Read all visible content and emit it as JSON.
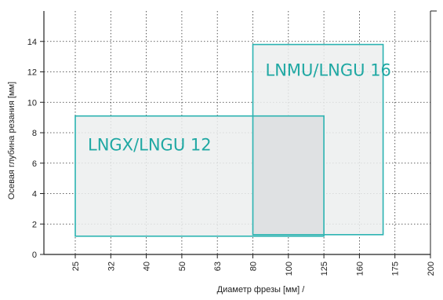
{
  "chart_data": {
    "type": "area",
    "title": "",
    "xlabel": "Диаметр фрезы [мм] /",
    "ylabel": "Осевая глубина резания [мм]",
    "x_scale": "categorical",
    "x_ticks": [
      "25",
      "32",
      "40",
      "50",
      "63",
      "80",
      "100",
      "125",
      "160",
      "175",
      "200"
    ],
    "y_ticks": [
      "0",
      "2",
      "4",
      "6",
      "8",
      "10",
      "12",
      "14"
    ],
    "ylim": [
      0,
      16
    ],
    "grid": true,
    "colors": {
      "zone_stroke": "#2bb3b1",
      "zone_fill": "#eceeef",
      "overlap_fill": "#dfe1e3",
      "label_color": "#1fa8a3",
      "grid_color": "#333333"
    },
    "series": [
      {
        "name": "LNGX/LNGU 12",
        "x_range": [
          "25",
          "125"
        ],
        "y_range": [
          1.2,
          9.1
        ]
      },
      {
        "name": "LNMU/LNGU 16",
        "x_range": [
          "80",
          "170"
        ],
        "y_range": [
          1.3,
          13.8
        ]
      }
    ]
  }
}
